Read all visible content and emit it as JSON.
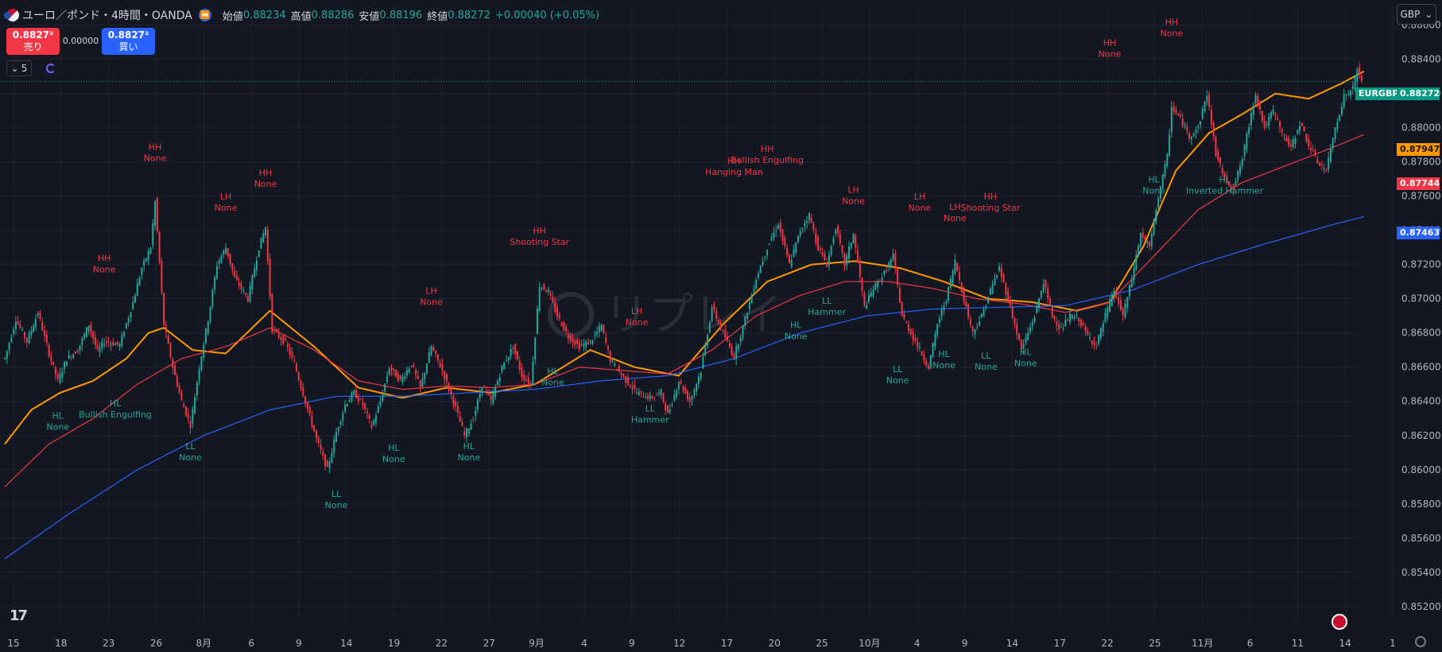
{
  "header": {
    "title": "ユーロ／ポンド・4時間・OANDA",
    "open_label": "始値",
    "open": "0.88234",
    "high_label": "高値",
    "high": "0.88286",
    "low_label": "安値",
    "low": "0.88196",
    "close_label": "終値",
    "close": "0.88272",
    "change": "+0.00040 (+0.05%)"
  },
  "trade": {
    "sell_price": "0.8827²",
    "sell_label": "売り",
    "spread": "0.00000",
    "buy_price": "0.8827²",
    "buy_label": "買い"
  },
  "indicator_count": "5",
  "currency_button": "GBP",
  "symbol": "EURGBP",
  "last_price": "0.88272",
  "ema_tags": [
    "0.87947",
    "0.87744",
    "0.87463"
  ],
  "watermark": "リプレイ",
  "colors": {
    "background": "#131722",
    "up": "#26a69a",
    "down": "#f23645",
    "ema_fast": "#ff9800",
    "ema_mid": "#f23645",
    "ema_slow": "#2962ff",
    "label_high": "#f23645",
    "label_low": "#26a69a"
  },
  "chart_data": {
    "type": "line",
    "x_tick_labels": [
      "15",
      "18",
      "23",
      "26",
      "8月",
      "6",
      "9",
      "14",
      "19",
      "22",
      "27",
      "9月",
      "4",
      "9",
      "12",
      "17",
      "20",
      "25",
      "10月",
      "4",
      "9",
      "14",
      "17",
      "22",
      "25",
      "11月",
      "6",
      "11",
      "14",
      "1"
    ],
    "y_tick_labels": [
      "0.88600",
      "0.88400",
      "0.88200",
      "0.88000",
      "0.87800",
      "0.87600",
      "0.87400",
      "0.87200",
      "0.87000",
      "0.86800",
      "0.86600",
      "0.86400",
      "0.86200",
      "0.86000",
      "0.85800",
      "0.85600",
      "0.85400",
      "0.85200"
    ],
    "ylim": [
      0.8512,
      0.8871
    ],
    "grid": true,
    "price_path": [
      [
        0,
        0.8665
      ],
      [
        5,
        0.8688
      ],
      [
        10,
        0.8675
      ],
      [
        15,
        0.8692
      ],
      [
        20,
        0.8668
      ],
      [
        24,
        0.8652
      ],
      [
        28,
        0.8665
      ],
      [
        33,
        0.867
      ],
      [
        38,
        0.8685
      ],
      [
        42,
        0.8669
      ],
      [
        45,
        0.8675
      ],
      [
        52,
        0.8673
      ],
      [
        58,
        0.8698
      ],
      [
        62,
        0.8718
      ],
      [
        66,
        0.873
      ],
      [
        68,
        0.8757
      ],
      [
        72,
        0.8685
      ],
      [
        76,
        0.866
      ],
      [
        80,
        0.864
      ],
      [
        84,
        0.8626
      ],
      [
        88,
        0.866
      ],
      [
        92,
        0.8688
      ],
      [
        96,
        0.872
      ],
      [
        100,
        0.873
      ],
      [
        104,
        0.8712
      ],
      [
        110,
        0.87
      ],
      [
        115,
        0.873
      ],
      [
        118,
        0.8742
      ],
      [
        121,
        0.8682
      ],
      [
        127,
        0.8674
      ],
      [
        131,
        0.8662
      ],
      [
        136,
        0.864
      ],
      [
        141,
        0.8618
      ],
      [
        146,
        0.86
      ],
      [
        150,
        0.8622
      ],
      [
        154,
        0.8638
      ],
      [
        158,
        0.8645
      ],
      [
        162,
        0.8638
      ],
      [
        166,
        0.8625
      ],
      [
        170,
        0.864
      ],
      [
        174,
        0.866
      ],
      [
        179,
        0.8652
      ],
      [
        184,
        0.8662
      ],
      [
        188,
        0.8648
      ],
      [
        193,
        0.8672
      ],
      [
        198,
        0.8658
      ],
      [
        203,
        0.864
      ],
      [
        208,
        0.862
      ],
      [
        212,
        0.863
      ],
      [
        216,
        0.865
      ],
      [
        220,
        0.864
      ],
      [
        225,
        0.866
      ],
      [
        230,
        0.8672
      ],
      [
        234,
        0.8655
      ],
      [
        238,
        0.865
      ],
      [
        242,
        0.8708
      ],
      [
        246,
        0.8704
      ],
      [
        250,
        0.869
      ],
      [
        255,
        0.8678
      ],
      [
        260,
        0.8672
      ],
      [
        265,
        0.8675
      ],
      [
        270,
        0.8684
      ],
      [
        274,
        0.8664
      ],
      [
        280,
        0.8654
      ],
      [
        286,
        0.8645
      ],
      [
        292,
        0.8642
      ],
      [
        297,
        0.8645
      ],
      [
        300,
        0.8632
      ],
      [
        305,
        0.8652
      ],
      [
        310,
        0.864
      ],
      [
        315,
        0.8658
      ],
      [
        320,
        0.8695
      ],
      [
        325,
        0.868
      ],
      [
        330,
        0.8666
      ],
      [
        335,
        0.8688
      ],
      [
        340,
        0.8712
      ],
      [
        345,
        0.873
      ],
      [
        350,
        0.8744
      ],
      [
        355,
        0.872
      ],
      [
        360,
        0.874
      ],
      [
        364,
        0.8749
      ],
      [
        368,
        0.873
      ],
      [
        372,
        0.872
      ],
      [
        376,
        0.8742
      ],
      [
        380,
        0.872
      ],
      [
        384,
        0.8738
      ],
      [
        389,
        0.8695
      ],
      [
        393,
        0.8706
      ],
      [
        398,
        0.8715
      ],
      [
        402,
        0.8725
      ],
      [
        406,
        0.869
      ],
      [
        410,
        0.868
      ],
      [
        414,
        0.867
      ],
      [
        418,
        0.866
      ],
      [
        422,
        0.8685
      ],
      [
        426,
        0.87
      ],
      [
        430,
        0.8722
      ],
      [
        434,
        0.87
      ],
      [
        438,
        0.868
      ],
      [
        442,
        0.869
      ],
      [
        446,
        0.8705
      ],
      [
        450,
        0.8718
      ],
      [
        455,
        0.8695
      ],
      [
        460,
        0.867
      ],
      [
        466,
        0.869
      ],
      [
        470,
        0.871
      ],
      [
        474,
        0.869
      ],
      [
        478,
        0.8682
      ],
      [
        482,
        0.869
      ],
      [
        486,
        0.8688
      ],
      [
        490,
        0.8678
      ],
      [
        494,
        0.8673
      ],
      [
        498,
        0.869
      ],
      [
        502,
        0.8705
      ],
      [
        506,
        0.869
      ],
      [
        510,
        0.8712
      ],
      [
        514,
        0.8738
      ],
      [
        518,
        0.873
      ],
      [
        522,
        0.876
      ],
      [
        526,
        0.8783
      ],
      [
        528,
        0.8812
      ],
      [
        532,
        0.8805
      ],
      [
        536,
        0.8795
      ],
      [
        540,
        0.88
      ],
      [
        544,
        0.882
      ],
      [
        548,
        0.8785
      ],
      [
        552,
        0.877
      ],
      [
        556,
        0.8765
      ],
      [
        560,
        0.8782
      ],
      [
        564,
        0.8808
      ],
      [
        566,
        0.882
      ],
      [
        570,
        0.88
      ],
      [
        574,
        0.881
      ],
      [
        578,
        0.8797
      ],
      [
        582,
        0.8788
      ],
      [
        586,
        0.8803
      ],
      [
        590,
        0.879
      ],
      [
        594,
        0.878
      ],
      [
        598,
        0.8775
      ],
      [
        602,
        0.88
      ],
      [
        606,
        0.8818
      ],
      [
        610,
        0.8823
      ],
      [
        612,
        0.8834
      ],
      [
        614,
        0.8828
      ]
    ],
    "series": [
      {
        "values": [
          [
            0,
            0.8615
          ],
          [
            12,
            0.8635
          ],
          [
            25,
            0.8645
          ],
          [
            40,
            0.8652
          ],
          [
            55,
            0.8665
          ],
          [
            65,
            0.868
          ],
          [
            72,
            0.8683
          ],
          [
            85,
            0.867
          ],
          [
            100,
            0.8668
          ],
          [
            120,
            0.8693
          ],
          [
            140,
            0.8672
          ],
          [
            160,
            0.8648
          ],
          [
            180,
            0.8642
          ],
          [
            200,
            0.8648
          ],
          [
            220,
            0.8645
          ],
          [
            240,
            0.865
          ],
          [
            265,
            0.867
          ],
          [
            285,
            0.866
          ],
          [
            305,
            0.8655
          ],
          [
            325,
            0.8685
          ],
          [
            345,
            0.871
          ],
          [
            365,
            0.872
          ],
          [
            385,
            0.8722
          ],
          [
            405,
            0.8718
          ],
          [
            425,
            0.871
          ],
          [
            445,
            0.87
          ],
          [
            465,
            0.8698
          ],
          [
            485,
            0.8693
          ],
          [
            500,
            0.8698
          ],
          [
            515,
            0.873
          ],
          [
            530,
            0.8775
          ],
          [
            545,
            0.8797
          ],
          [
            560,
            0.8808
          ],
          [
            575,
            0.882
          ],
          [
            590,
            0.8817
          ],
          [
            605,
            0.8826
          ],
          [
            615,
            0.8833
          ]
        ]
      },
      {
        "values": [
          [
            0,
            0.859
          ],
          [
            20,
            0.8615
          ],
          [
            40,
            0.863
          ],
          [
            60,
            0.865
          ],
          [
            80,
            0.8665
          ],
          [
            100,
            0.8672
          ],
          [
            120,
            0.8683
          ],
          [
            140,
            0.867
          ],
          [
            160,
            0.8652
          ],
          [
            180,
            0.8647
          ],
          [
            200,
            0.8649
          ],
          [
            220,
            0.8648
          ],
          [
            240,
            0.865
          ],
          [
            260,
            0.866
          ],
          [
            280,
            0.8658
          ],
          [
            300,
            0.8656
          ],
          [
            320,
            0.867
          ],
          [
            340,
            0.869
          ],
          [
            360,
            0.8702
          ],
          [
            380,
            0.871
          ],
          [
            400,
            0.871
          ],
          [
            420,
            0.8706
          ],
          [
            440,
            0.87
          ],
          [
            460,
            0.8697
          ],
          [
            480,
            0.8692
          ],
          [
            500,
            0.8698
          ],
          [
            520,
            0.8725
          ],
          [
            540,
            0.8752
          ],
          [
            560,
            0.8768
          ],
          [
            580,
            0.8778
          ],
          [
            600,
            0.8788
          ],
          [
            615,
            0.8796
          ]
        ]
      },
      {
        "values": [
          [
            0,
            0.8548
          ],
          [
            30,
            0.8575
          ],
          [
            60,
            0.86
          ],
          [
            90,
            0.862
          ],
          [
            120,
            0.8635
          ],
          [
            150,
            0.8643
          ],
          [
            180,
            0.8643
          ],
          [
            210,
            0.8645
          ],
          [
            240,
            0.8647
          ],
          [
            270,
            0.8652
          ],
          [
            300,
            0.8655
          ],
          [
            330,
            0.8665
          ],
          [
            360,
            0.868
          ],
          [
            390,
            0.869
          ],
          [
            420,
            0.8694
          ],
          [
            450,
            0.8695
          ],
          [
            480,
            0.8696
          ],
          [
            510,
            0.8705
          ],
          [
            540,
            0.872
          ],
          [
            570,
            0.8732
          ],
          [
            600,
            0.8743
          ],
          [
            615,
            0.8748
          ]
        ]
      }
    ],
    "annotations": [
      {
        "x": 45,
        "y": 0.8722,
        "lines": [
          "HH",
          "None"
        ],
        "kind": "high"
      },
      {
        "x": 68,
        "y": 0.8787,
        "lines": [
          "HH",
          "None"
        ],
        "kind": "high"
      },
      {
        "x": 100,
        "y": 0.8758,
        "lines": [
          "LH",
          "None"
        ],
        "kind": "high"
      },
      {
        "x": 118,
        "y": 0.8772,
        "lines": [
          "HH",
          "None"
        ],
        "kind": "high"
      },
      {
        "x": 193,
        "y": 0.8703,
        "lines": [
          "LH",
          "None"
        ],
        "kind": "high"
      },
      {
        "x": 242,
        "y": 0.8738,
        "lines": [
          "HH",
          "Shooting Star"
        ],
        "kind": "high"
      },
      {
        "x": 286,
        "y": 0.8691,
        "lines": [
          "LH",
          "None"
        ],
        "kind": "high"
      },
      {
        "x": 330,
        "y": 0.8779,
        "lines": [
          "HH",
          "Hanging Man"
        ],
        "kind": "high"
      },
      {
        "x": 345,
        "y": 0.8786,
        "lines": [
          "HH",
          "Bullish Engulfing"
        ],
        "kind": "high"
      },
      {
        "x": 384,
        "y": 0.8762,
        "lines": [
          "LH",
          "None"
        ],
        "kind": "high"
      },
      {
        "x": 414,
        "y": 0.8758,
        "lines": [
          "LH",
          "None"
        ],
        "kind": "high"
      },
      {
        "x": 430,
        "y": 0.8752,
        "lines": [
          "LH",
          "None"
        ],
        "kind": "high"
      },
      {
        "x": 446,
        "y": 0.8758,
        "lines": [
          "HH",
          "Shooting Star"
        ],
        "kind": "high"
      },
      {
        "x": 500,
        "y": 0.8848,
        "lines": [
          "HH",
          "None"
        ],
        "kind": "high"
      },
      {
        "x": 528,
        "y": 0.886,
        "lines": [
          "HH",
          "None"
        ],
        "kind": "high"
      },
      {
        "x": 24,
        "y": 0.863,
        "lines": [
          "HL",
          "None"
        ],
        "kind": "low"
      },
      {
        "x": 50,
        "y": 0.8637,
        "lines": [
          "HL",
          "Bullish Engulfing"
        ],
        "kind": "low"
      },
      {
        "x": 84,
        "y": 0.8612,
        "lines": [
          "LL",
          "None"
        ],
        "kind": "low"
      },
      {
        "x": 150,
        "y": 0.8584,
        "lines": [
          "LL",
          "None"
        ],
        "kind": "low"
      },
      {
        "x": 176,
        "y": 0.8611,
        "lines": [
          "HL",
          "None"
        ],
        "kind": "low"
      },
      {
        "x": 210,
        "y": 0.8612,
        "lines": [
          "HL",
          "None"
        ],
        "kind": "low"
      },
      {
        "x": 248,
        "y": 0.8656,
        "lines": [
          "HL",
          "None"
        ],
        "kind": "low"
      },
      {
        "x": 292,
        "y": 0.8634,
        "lines": [
          "LL",
          "Hammer"
        ],
        "kind": "low"
      },
      {
        "x": 358,
        "y": 0.8683,
        "lines": [
          "HL",
          "None"
        ],
        "kind": "low"
      },
      {
        "x": 372,
        "y": 0.8697,
        "lines": [
          "LL",
          "Hammer"
        ],
        "kind": "low"
      },
      {
        "x": 404,
        "y": 0.8657,
        "lines": [
          "LL",
          "None"
        ],
        "kind": "low"
      },
      {
        "x": 425,
        "y": 0.8666,
        "lines": [
          "HL",
          "None"
        ],
        "kind": "low"
      },
      {
        "x": 444,
        "y": 0.8665,
        "lines": [
          "LL",
          "None"
        ],
        "kind": "low"
      },
      {
        "x": 462,
        "y": 0.8667,
        "lines": [
          "HL",
          "None"
        ],
        "kind": "low"
      },
      {
        "x": 520,
        "y": 0.8768,
        "lines": [
          "HL",
          "None"
        ],
        "kind": "low"
      },
      {
        "x": 552,
        "y": 0.8768,
        "lines": [
          "HL",
          "Inverted Hammer"
        ],
        "kind": "low"
      }
    ]
  }
}
